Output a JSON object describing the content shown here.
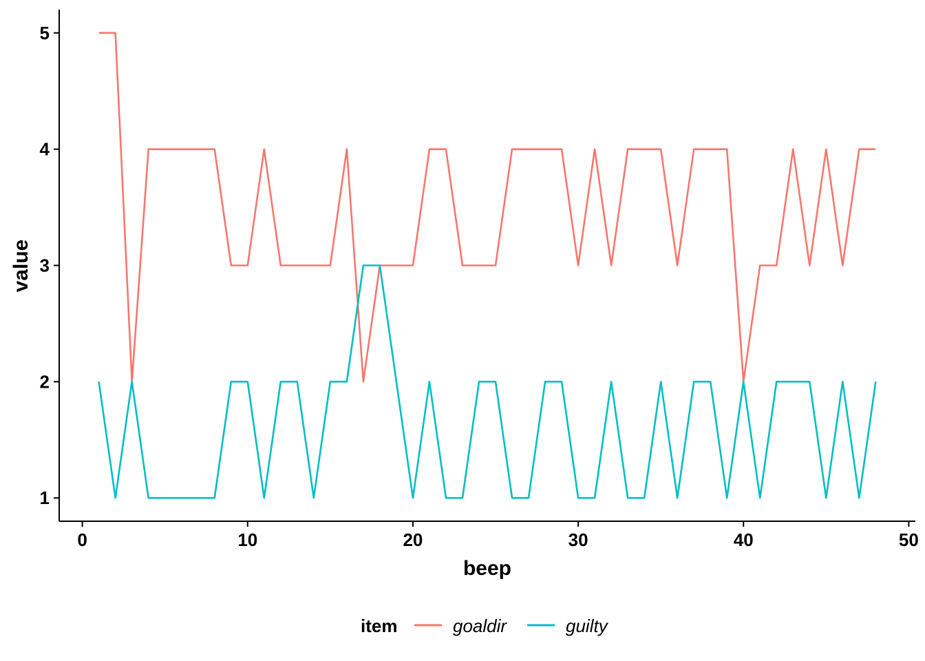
{
  "chart_data": {
    "type": "line",
    "xlabel": "beep",
    "ylabel": "value",
    "xlim": [
      -1.4,
      50.4
    ],
    "ylim": [
      0.8,
      5.2
    ],
    "x_ticks": [
      0,
      10,
      20,
      30,
      40,
      50
    ],
    "y_ticks": [
      1,
      2,
      3,
      4,
      5
    ],
    "grid": false,
    "legend": {
      "title": "item",
      "position": "bottom",
      "entries": [
        "goaldir",
        "guilty"
      ]
    },
    "series": [
      {
        "name": "goaldir",
        "color": "#F8766D",
        "x": [
          1,
          2,
          3,
          4,
          5,
          6,
          7,
          8,
          9,
          10,
          11,
          12,
          13,
          14,
          15,
          16,
          17,
          18,
          19,
          20,
          21,
          22,
          23,
          24,
          25,
          26,
          27,
          28,
          29,
          30,
          31,
          32,
          33,
          34,
          35,
          36,
          37,
          38,
          39,
          40,
          41,
          42,
          43,
          44,
          45,
          46,
          47,
          48
        ],
        "y": [
          5,
          5,
          2,
          4,
          4,
          4,
          4,
          4,
          3,
          3,
          4,
          3,
          3,
          3,
          3,
          4,
          2,
          3,
          3,
          3,
          4,
          4,
          3,
          3,
          3,
          4,
          4,
          4,
          4,
          3,
          4,
          3,
          4,
          4,
          4,
          3,
          4,
          4,
          4,
          2,
          3,
          3,
          4,
          3,
          4,
          3,
          4,
          4
        ]
      },
      {
        "name": "guilty",
        "color": "#00BFC4",
        "x": [
          1,
          2,
          3,
          4,
          5,
          6,
          7,
          8,
          9,
          10,
          11,
          12,
          13,
          14,
          15,
          16,
          17,
          18,
          19,
          20,
          21,
          22,
          23,
          24,
          25,
          26,
          27,
          28,
          29,
          30,
          31,
          32,
          33,
          34,
          35,
          36,
          37,
          38,
          39,
          40,
          41,
          42,
          43,
          44,
          45,
          46,
          47,
          48
        ],
        "y": [
          2,
          1,
          2,
          1,
          1,
          1,
          1,
          1,
          2,
          2,
          1,
          2,
          2,
          1,
          2,
          2,
          3,
          3,
          2,
          1,
          2,
          1,
          1,
          2,
          2,
          1,
          1,
          2,
          2,
          1,
          1,
          2,
          1,
          1,
          2,
          1,
          2,
          2,
          1,
          2,
          1,
          2,
          2,
          2,
          1,
          2,
          1,
          2
        ]
      }
    ]
  }
}
